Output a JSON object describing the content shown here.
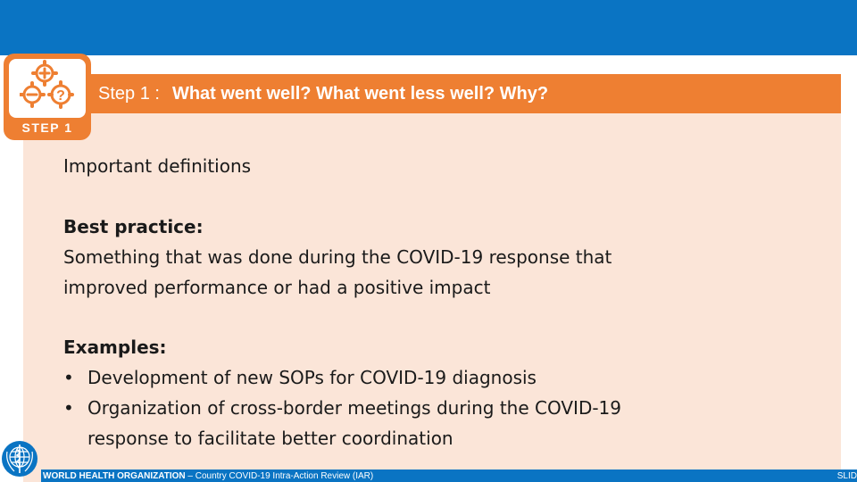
{
  "title": {
    "step": "Step 1 :",
    "question": "What went well? What went less well? Why?"
  },
  "badge": {
    "label": "STEP 1",
    "icon": "gears-plus-minus-question-icon"
  },
  "content": {
    "heading": "Important definitions",
    "best_practice_label": "Best practice:",
    "best_practice_line1": "Something that was done during the COVID-19 response that",
    "best_practice_line2": "improved performance or had a positive impact",
    "examples_label": "Examples:",
    "examples": [
      {
        "bullet": "•",
        "lines": [
          "Development of new SOPs for COVID-19 diagnosis"
        ]
      },
      {
        "bullet": "•",
        "lines": [
          "Organization of cross-border meetings during the COVID-19",
          "response to facilitate better coordination"
        ]
      }
    ]
  },
  "footer": {
    "org": "WORLD HEALTH ORGANIZATION",
    "subtitle": " – Country COVID-19 Intra-Action Review (IAR)",
    "slide": "SLID",
    "logo": "who-emblem-icon"
  },
  "colors": {
    "blue": "#0a74c3",
    "orange": "#ee7f32",
    "panel": "#fbe5d8"
  }
}
